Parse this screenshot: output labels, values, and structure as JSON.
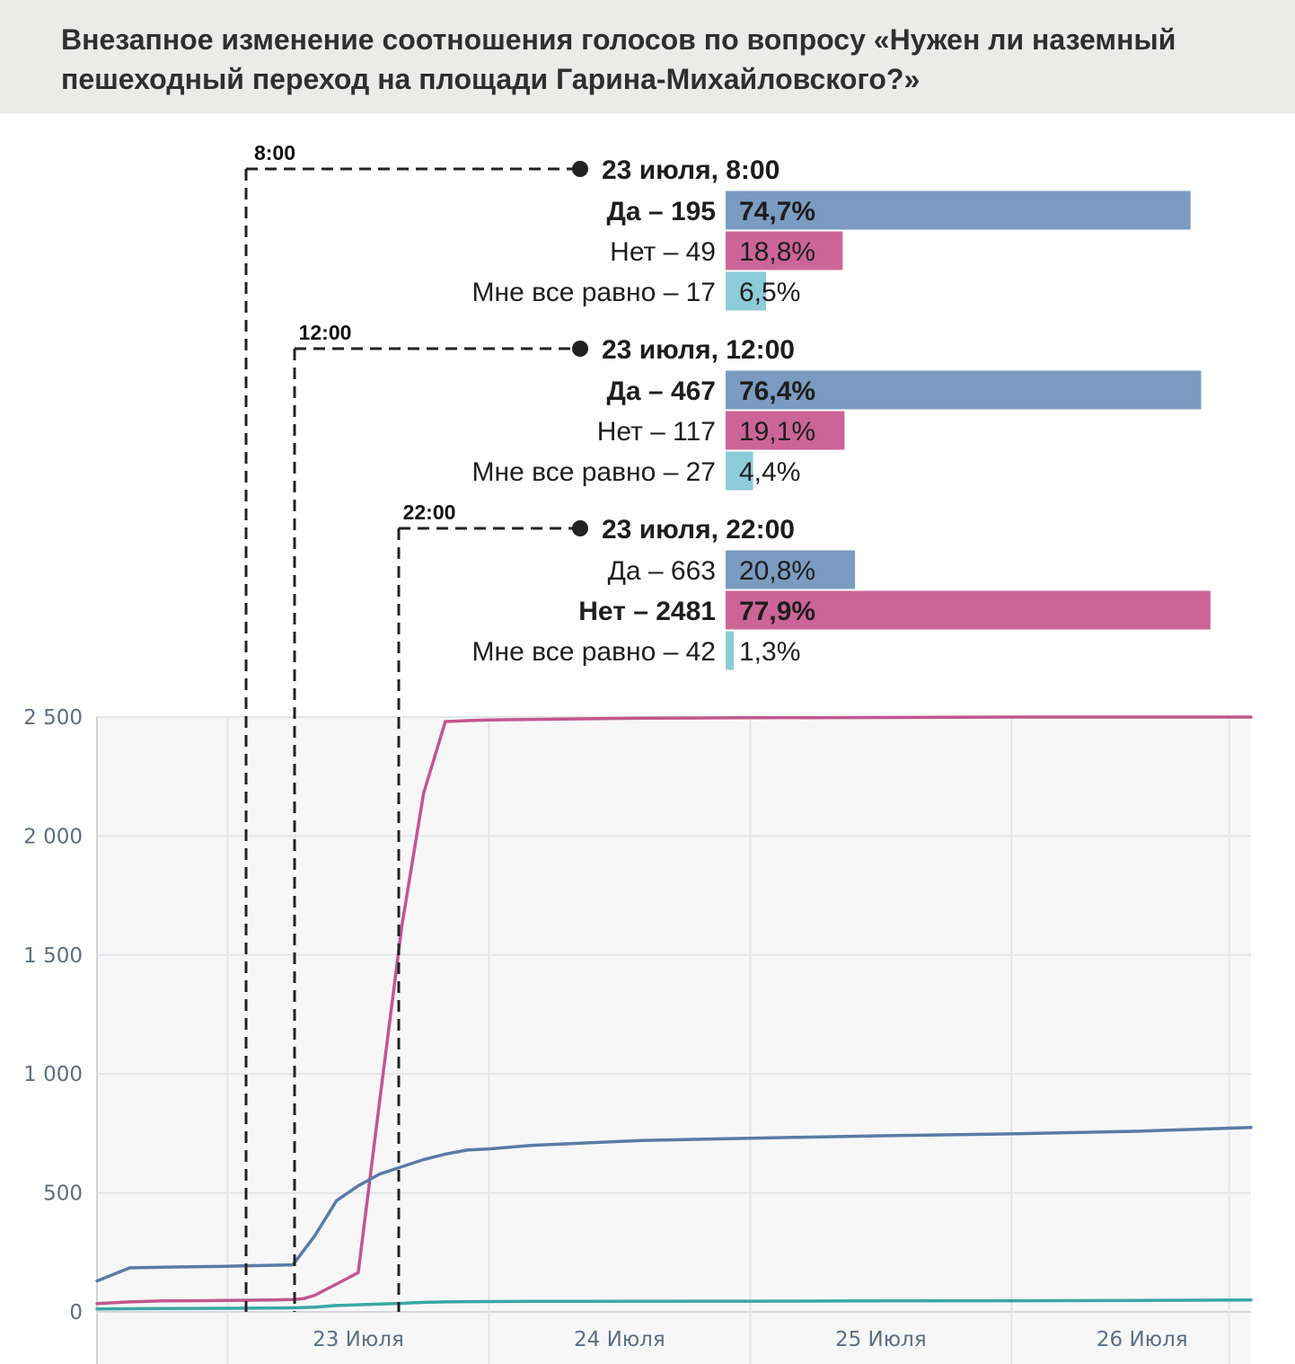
{
  "title": "Внезапное изменение соотношения голосов по вопросу «Нужен ли наземный пешеходный переход на площади Гарина-Михайловского?»",
  "colors": {
    "yes": "#7b9bc1",
    "no": "#cc6597",
    "indifferent": "#8ccbd8",
    "yes_line": "#5a7ba6",
    "no_line": "#c2568f",
    "indifferent_line": "#3aa7a4"
  },
  "snapshots": [
    {
      "time_label": "8:00",
      "date_label": "23 июля, 8:00",
      "rows": [
        {
          "label": "Да – 195",
          "pct_label": "74,7%",
          "pct": 74.7,
          "bold": true,
          "kind": "yes"
        },
        {
          "label": "Нет – 49",
          "pct_label": "18,8%",
          "pct": 18.8,
          "bold": false,
          "kind": "no"
        },
        {
          "label": "Мне все равно – 17",
          "pct_label": "6,5%",
          "pct": 6.5,
          "bold": false,
          "kind": "indifferent"
        }
      ]
    },
    {
      "time_label": "12:00",
      "date_label": "23 июля, 12:00",
      "rows": [
        {
          "label": "Да – 467",
          "pct_label": "76,4%",
          "pct": 76.4,
          "bold": true,
          "kind": "yes"
        },
        {
          "label": "Нет – 117",
          "pct_label": "19,1%",
          "pct": 19.1,
          "bold": false,
          "kind": "no"
        },
        {
          "label": "Мне все равно – 27",
          "pct_label": "4,4%",
          "pct": 4.4,
          "bold": false,
          "kind": "indifferent"
        }
      ]
    },
    {
      "time_label": "22:00",
      "date_label": "23 июля, 22:00",
      "rows": [
        {
          "label": "Да – 663",
          "pct_label": "20,8%",
          "pct": 20.8,
          "bold": false,
          "kind": "yes"
        },
        {
          "label": "Нет – 2481",
          "pct_label": "77,9%",
          "pct": 77.9,
          "bold": true,
          "kind": "no"
        },
        {
          "label": "Мне все равно – 42",
          "pct_label": "1,3%",
          "pct": 1.3,
          "bold": false,
          "kind": "indifferent"
        }
      ]
    }
  ],
  "chart_data": {
    "type": "line",
    "title": "",
    "xlabel": "",
    "ylabel": "",
    "y_ticks": [
      0,
      500,
      1000,
      1500,
      2000,
      2500
    ],
    "y_tick_labels": [
      "0",
      "500",
      "1 000",
      "1 500",
      "2 000",
      "2 500"
    ],
    "ylim": [
      0,
      2500
    ],
    "x_ticks": [
      24,
      48,
      72,
      96
    ],
    "x_tick_labels": [
      "23 Июля",
      "24 Июля",
      "25 Июля",
      "26 Июля"
    ],
    "xlim": [
      0,
      106
    ],
    "x_unit": "hours since 22 July 00:00",
    "grid": true,
    "legend": "none",
    "series": [
      {
        "kind": "no",
        "x": [
          0,
          3,
          6,
          9,
          12,
          14,
          16,
          18,
          19,
          20,
          22,
          24,
          26,
          28,
          30,
          32,
          34,
          36,
          40,
          50,
          60,
          72,
          84,
          96,
          106
        ],
        "y": [
          35,
          42,
          46,
          47,
          48,
          49,
          50,
          52,
          56,
          70,
          117,
          165,
          900,
          1620,
          2180,
          2481,
          2485,
          2488,
          2490,
          2495,
          2497,
          2498,
          2500,
          2500,
          2500
        ]
      },
      {
        "kind": "yes",
        "x": [
          0,
          3,
          6,
          9,
          12,
          14,
          16,
          18,
          20,
          22,
          24,
          26,
          28,
          30,
          32,
          34,
          36,
          40,
          50,
          60,
          72,
          84,
          96,
          106
        ],
        "y": [
          130,
          185,
          188,
          190,
          192,
          194,
          196,
          198,
          320,
          467,
          530,
          580,
          610,
          640,
          663,
          680,
          685,
          700,
          720,
          730,
          740,
          748,
          760,
          775
        ]
      },
      {
        "kind": "indifferent",
        "x": [
          0,
          6,
          12,
          16,
          18,
          20,
          22,
          24,
          26,
          28,
          30,
          32,
          34,
          40,
          60,
          72,
          84,
          96,
          106
        ],
        "y": [
          12,
          14,
          15,
          16,
          17,
          20,
          27,
          30,
          33,
          36,
          40,
          42,
          43,
          44,
          45,
          46,
          47,
          48,
          50
        ]
      }
    ]
  }
}
